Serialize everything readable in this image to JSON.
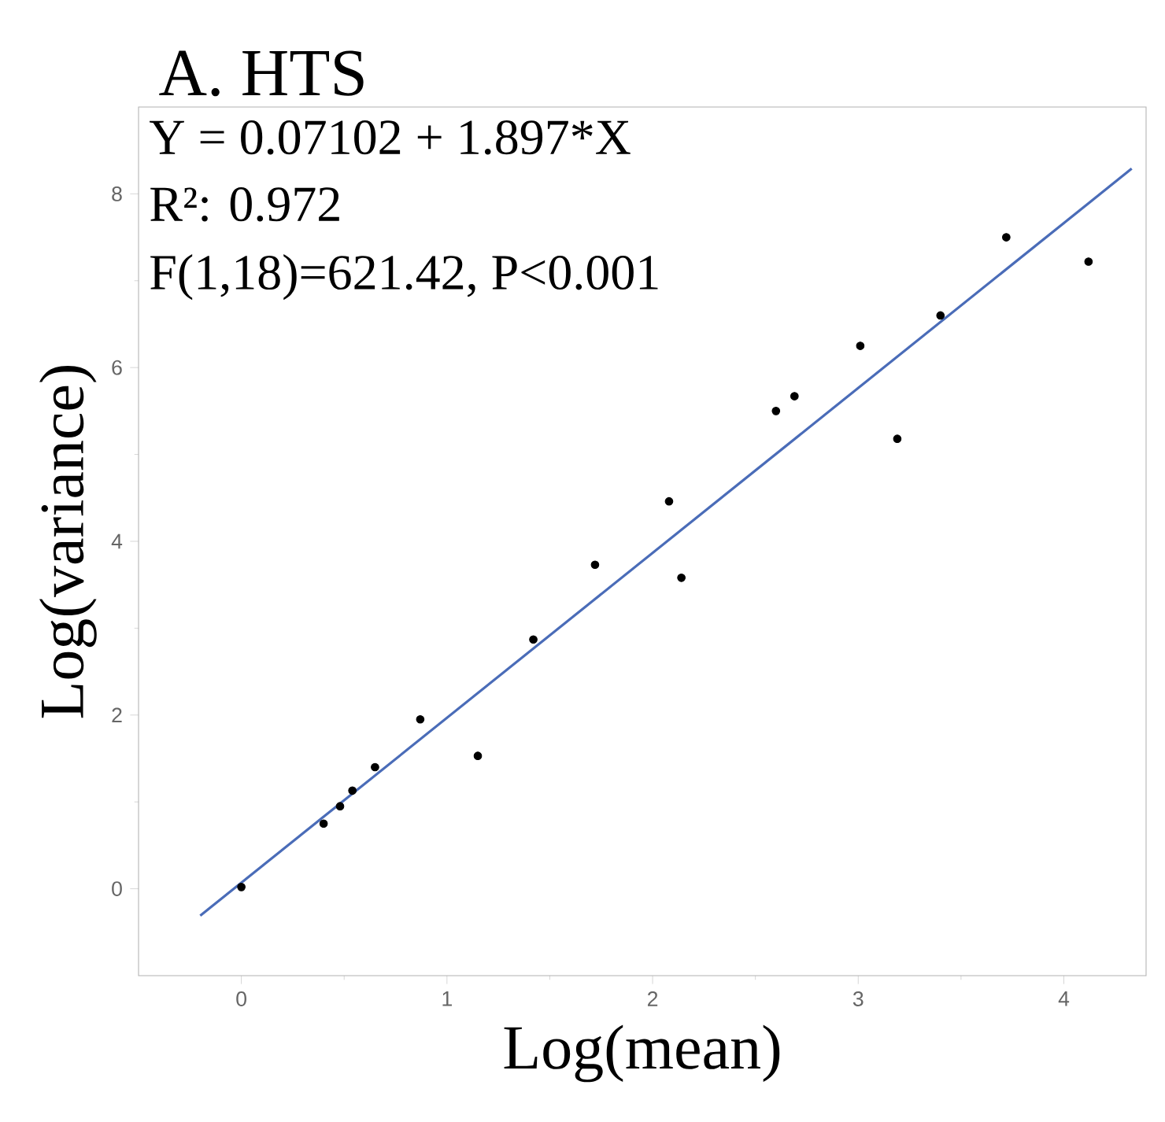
{
  "chart_data": {
    "type": "scatter",
    "title": "A. HTS",
    "xlabel": "Log(mean)",
    "ylabel": "Log(variance)",
    "annotations": [
      "Y = 0.07102 + 1.897*X",
      "R²: 0.972",
      "F(1,18)=621.42, P<0.001"
    ],
    "xlim": [
      -0.5,
      4.4
    ],
    "ylim": [
      -1,
      9
    ],
    "xticks": [
      0,
      1,
      2,
      3,
      4
    ],
    "yticks": [
      0,
      2,
      4,
      6,
      8
    ],
    "grid": false,
    "series": [
      {
        "marker": "circle",
        "color": "#000000",
        "x": [
          0,
          0.4,
          0.48,
          0.54,
          0.65,
          0.87,
          1.15,
          1.42,
          1.72,
          2.08,
          2.14,
          2.6,
          2.69,
          3.01,
          3.19,
          3.4,
          3.72,
          4.12
        ],
        "values": [
          0.02,
          0.75,
          0.95,
          1.13,
          1.4,
          1.95,
          1.53,
          2.87,
          3.73,
          4.46,
          3.58,
          5.5,
          5.67,
          6.25,
          5.18,
          6.6,
          7.5,
          7.22
        ]
      },
      {
        "type": "line",
        "color": "#4a6cb8",
        "marker": "none",
        "line_style": "solid",
        "x": [
          -0.2,
          4.33
        ],
        "values": [
          -0.31,
          8.29
        ]
      }
    ]
  }
}
